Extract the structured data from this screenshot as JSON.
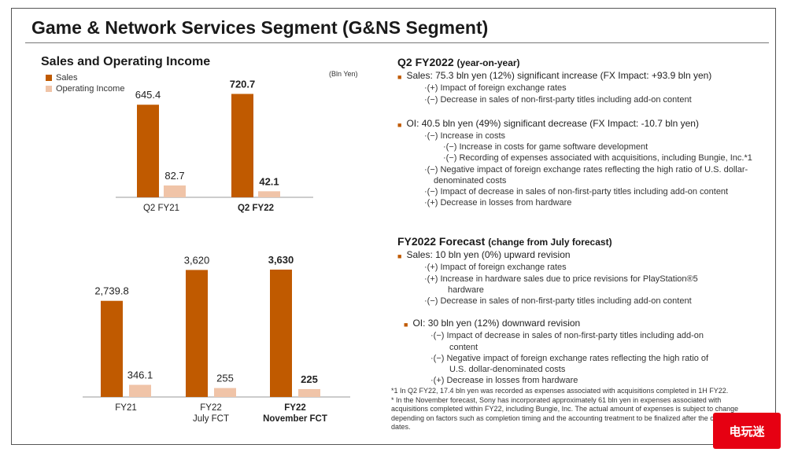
{
  "title": "Game & Network Services Segment (G&NS Segment)",
  "left": {
    "heading": "Sales and Operating Income",
    "legend": {
      "sales": "Sales",
      "oi": "Operating Income"
    },
    "unit": "(Bln Yen)"
  },
  "colors": {
    "sales": "#c05a00",
    "oi": "#f0c4a8",
    "accent": "#c05a00"
  },
  "chart_data": [
    {
      "type": "bar",
      "categories": [
        "Q2 FY21",
        "Q2 FY22"
      ],
      "series": [
        {
          "name": "Sales",
          "values": [
            645.4,
            720.7
          ],
          "labels": [
            "645.4",
            "720.7"
          ]
        },
        {
          "name": "Operating Income",
          "values": [
            82.7,
            42.1
          ],
          "labels": [
            "82.7",
            "42.1"
          ]
        }
      ],
      "bold_categories": [
        "Q2 FY22"
      ],
      "ylim": [
        0,
        800
      ]
    },
    {
      "type": "bar",
      "categories": [
        "FY21",
        "FY22\nJuly FCT",
        "FY22\nNovember FCT"
      ],
      "series": [
        {
          "name": "Sales",
          "values": [
            2739.8,
            3620,
            3630
          ],
          "labels": [
            "2,739.8",
            "3,620",
            "3,630"
          ]
        },
        {
          "name": "Operating Income",
          "values": [
            346.1,
            255,
            225
          ],
          "labels": [
            "346.1",
            "255",
            "225"
          ]
        }
      ],
      "bold_categories": [
        "FY22\nNovember FCT"
      ],
      "ylim": [
        0,
        4100
      ]
    }
  ],
  "q2": {
    "heading": "Q2 FY2022",
    "heading_note": "(year-on-year)",
    "sales_point": "Sales: 75.3 bln yen (12%) significant increase (FX Impact: +93.9 bln yen)",
    "sales_subs": [
      "·(+) Impact of foreign exchange rates",
      "·(−) Decrease in sales of non-first-party titles including add-on content"
    ],
    "oi_point": "OI:  40.5 bln yen (49%) significant decrease (FX Impact: -10.7 bln yen)",
    "oi_sub1": "·(−) Increase in costs",
    "oi_sub1_children": [
      "·(−) Increase in costs for game software development",
      "·(−) Recording of expenses associated with acquisitions, including Bungie, Inc.*1"
    ],
    "oi_subs_rest": [
      "·(−) Negative impact of foreign exchange rates reflecting the high ratio of U.S. dollar-",
      "denominated costs",
      "·(−) Impact of decrease in sales of non-first-party titles including add-on content",
      "·(+) Decrease in losses from hardware"
    ]
  },
  "fy": {
    "heading": "FY2022 Forecast",
    "heading_note": "(change from July forecast)",
    "sales_point": "Sales: 10 bln yen (0%) upward revision",
    "sales_subs": [
      "·(+) Impact of foreign exchange rates",
      "·(+) Increase in hardware sales due to price revisions for PlayStation®5",
      "hardware",
      "·(−) Decrease in sales of non-first-party titles including add-on content"
    ],
    "oi_point": "OI: 30 bln yen (12%) downward revision",
    "oi_subs": [
      "·(−) Impact of decrease in sales of non-first-party titles including add-on",
      "content",
      "·(−) Negative impact of foreign exchange rates reflecting the high ratio of",
      "U.S. dollar-denominated costs",
      "·(+) Decrease in losses from hardware"
    ]
  },
  "footnotes": [
    "*1 In Q2 FY22, 17.4 bln yen was recorded as expenses associated with acquisitions completed in 1H FY22.",
    "*  In the November forecast, Sony has incorporated approximately 61 bln yen in expenses associated with acquisitions completed within FY22, including Bungie, Inc. The actual amount of expenses is subject to change depending on factors such as completion timing and the accounting treatment to be finalized after the closing dates."
  ],
  "watermark": "电玩迷"
}
